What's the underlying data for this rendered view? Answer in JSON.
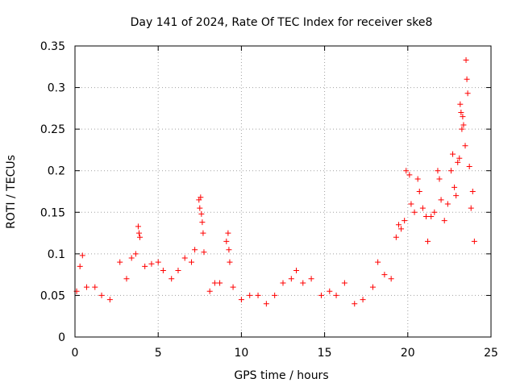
{
  "chart_data": {
    "type": "scatter",
    "title": "Day 141 of 2024, Rate Of TEC Index for receiver ske8",
    "xlabel": "GPS time / hours",
    "ylabel": "ROTI / TECUs",
    "xlim": [
      0,
      25
    ],
    "ylim": [
      0,
      0.35
    ],
    "grid": true,
    "marker": "+",
    "marker_color": "#ff0000",
    "x_ticks": [
      {
        "value": 0,
        "label": "0"
      },
      {
        "value": 5,
        "label": "5"
      },
      {
        "value": 10,
        "label": "10"
      },
      {
        "value": 15,
        "label": "15"
      },
      {
        "value": 20,
        "label": "20"
      },
      {
        "value": 25,
        "label": "25"
      }
    ],
    "y_ticks": [
      {
        "value": 0,
        "label": "0"
      },
      {
        "value": 0.05,
        "label": "0.05"
      },
      {
        "value": 0.1,
        "label": "0.1"
      },
      {
        "value": 0.15,
        "label": "0.15"
      },
      {
        "value": 0.2,
        "label": "0.2"
      },
      {
        "value": 0.25,
        "label": "0.25"
      },
      {
        "value": 0.3,
        "label": "0.3"
      },
      {
        "value": 0.35,
        "label": "0.35"
      }
    ],
    "series": [
      {
        "name": "ROTI",
        "points": [
          [
            0.1,
            0.055
          ],
          [
            0.3,
            0.085
          ],
          [
            0.45,
            0.098
          ],
          [
            0.7,
            0.06
          ],
          [
            1.2,
            0.06
          ],
          [
            1.6,
            0.05
          ],
          [
            2.1,
            0.045
          ],
          [
            2.7,
            0.09
          ],
          [
            3.1,
            0.07
          ],
          [
            3.4,
            0.095
          ],
          [
            3.65,
            0.1
          ],
          [
            3.8,
            0.133
          ],
          [
            3.85,
            0.125
          ],
          [
            3.9,
            0.12
          ],
          [
            4.2,
            0.085
          ],
          [
            4.6,
            0.088
          ],
          [
            5.0,
            0.09
          ],
          [
            5.3,
            0.08
          ],
          [
            5.8,
            0.07
          ],
          [
            6.2,
            0.08
          ],
          [
            6.6,
            0.095
          ],
          [
            7.0,
            0.09
          ],
          [
            7.2,
            0.105
          ],
          [
            7.45,
            0.165
          ],
          [
            7.5,
            0.155
          ],
          [
            7.55,
            0.168
          ],
          [
            7.6,
            0.148
          ],
          [
            7.65,
            0.138
          ],
          [
            7.7,
            0.125
          ],
          [
            7.75,
            0.102
          ],
          [
            8.1,
            0.055
          ],
          [
            8.4,
            0.065
          ],
          [
            8.7,
            0.065
          ],
          [
            9.1,
            0.115
          ],
          [
            9.2,
            0.125
          ],
          [
            9.25,
            0.105
          ],
          [
            9.3,
            0.09
          ],
          [
            9.5,
            0.06
          ],
          [
            10.0,
            0.045
          ],
          [
            10.5,
            0.05
          ],
          [
            11.0,
            0.05
          ],
          [
            11.5,
            0.04
          ],
          [
            12.0,
            0.05
          ],
          [
            12.5,
            0.065
          ],
          [
            13.0,
            0.07
          ],
          [
            13.3,
            0.08
          ],
          [
            13.7,
            0.065
          ],
          [
            14.2,
            0.07
          ],
          [
            14.8,
            0.05
          ],
          [
            15.3,
            0.055
          ],
          [
            15.7,
            0.05
          ],
          [
            16.2,
            0.065
          ],
          [
            16.8,
            0.04
          ],
          [
            17.3,
            0.045
          ],
          [
            17.9,
            0.06
          ],
          [
            18.2,
            0.09
          ],
          [
            18.6,
            0.075
          ],
          [
            19.0,
            0.07
          ],
          [
            19.3,
            0.12
          ],
          [
            19.45,
            0.135
          ],
          [
            19.6,
            0.13
          ],
          [
            19.8,
            0.14
          ],
          [
            19.9,
            0.2
          ],
          [
            20.1,
            0.195
          ],
          [
            20.2,
            0.16
          ],
          [
            20.4,
            0.15
          ],
          [
            20.6,
            0.19
          ],
          [
            20.7,
            0.175
          ],
          [
            20.9,
            0.155
          ],
          [
            21.1,
            0.145
          ],
          [
            21.2,
            0.115
          ],
          [
            21.4,
            0.145
          ],
          [
            21.6,
            0.15
          ],
          [
            21.8,
            0.2
          ],
          [
            21.9,
            0.19
          ],
          [
            22.0,
            0.165
          ],
          [
            22.2,
            0.14
          ],
          [
            22.4,
            0.16
          ],
          [
            22.6,
            0.2
          ],
          [
            22.7,
            0.22
          ],
          [
            22.8,
            0.18
          ],
          [
            22.9,
            0.17
          ],
          [
            23.0,
            0.21
          ],
          [
            23.1,
            0.215
          ],
          [
            23.15,
            0.28
          ],
          [
            23.2,
            0.27
          ],
          [
            23.25,
            0.25
          ],
          [
            23.3,
            0.265
          ],
          [
            23.35,
            0.255
          ],
          [
            23.45,
            0.23
          ],
          [
            23.5,
            0.333
          ],
          [
            23.55,
            0.31
          ],
          [
            23.6,
            0.293
          ],
          [
            23.7,
            0.205
          ],
          [
            23.8,
            0.155
          ],
          [
            23.9,
            0.175
          ],
          [
            24.0,
            0.115
          ]
        ]
      }
    ]
  }
}
